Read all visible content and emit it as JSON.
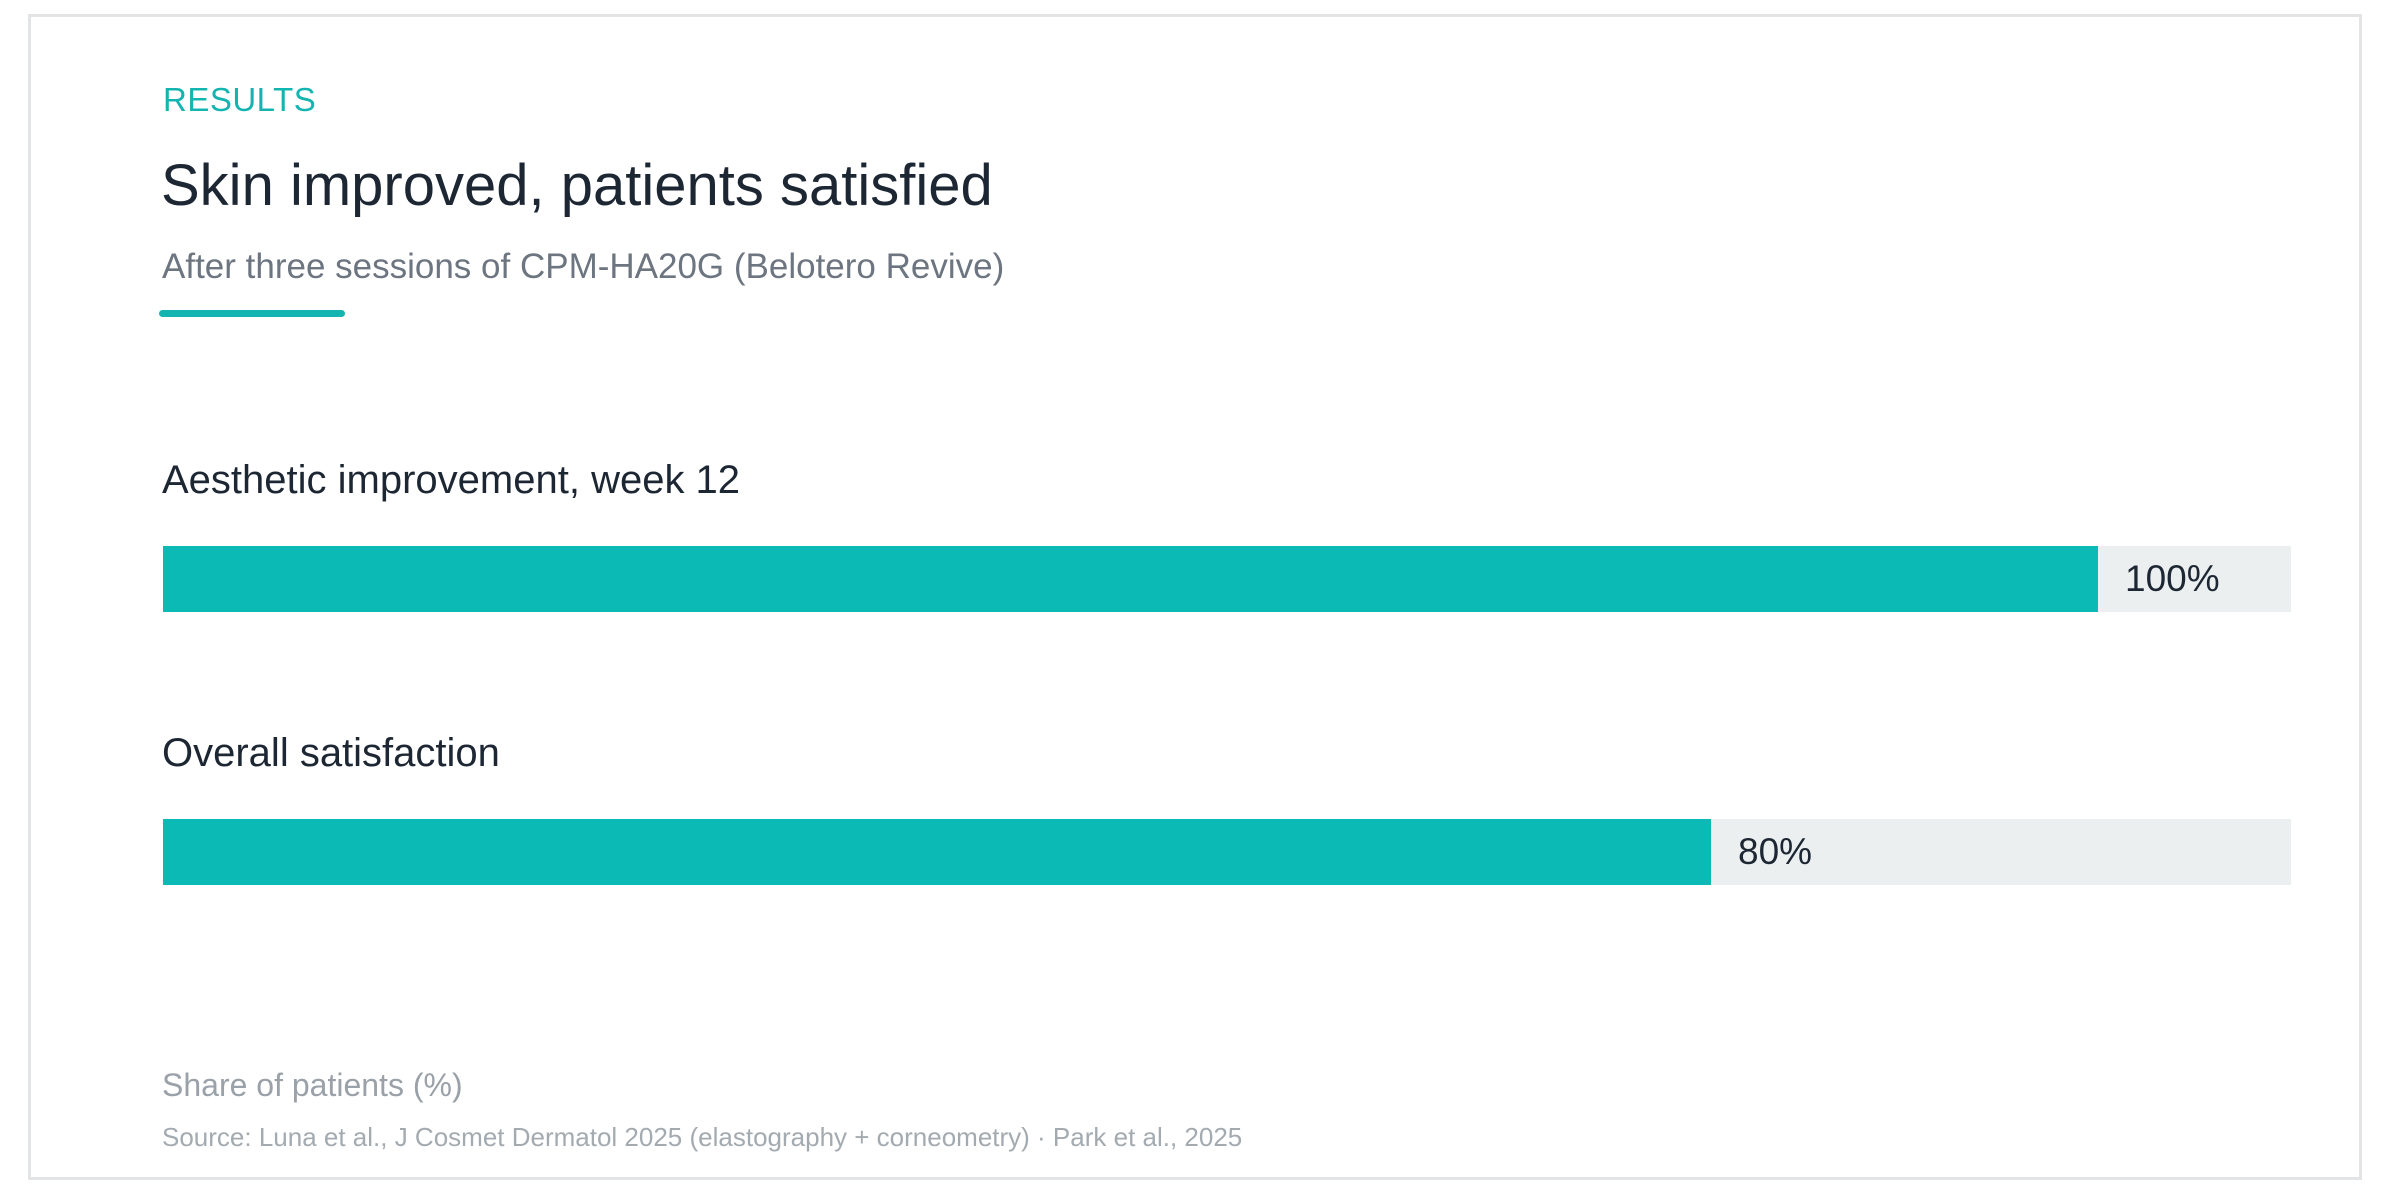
{
  "header": {
    "eyebrow": "RESULTS",
    "title": "Skin improved, patients satisfied",
    "subtitle": "After three sessions of CPM-HA20G (Belotero Revive)"
  },
  "footer": {
    "axis_caption": "Share of patients (%)",
    "source": "Source: Luna et al., J Cosmet Dermatol 2025 (elastography + corneometry) · Park et al., 2025"
  },
  "colors": {
    "accent": "#14b5b0",
    "bar": "#0bbab5",
    "track": "#ebeff0",
    "text": "#1d2733"
  },
  "chart_data": {
    "type": "bar",
    "orientation": "horizontal",
    "title": "Skin improved, patients satisfied",
    "subtitle": "After three sessions of CPM-HA20G (Belotero Revive)",
    "xlabel": "Share of patients (%)",
    "xlim": [
      0,
      110
    ],
    "grid": false,
    "categories": [
      "Aesthetic improvement, week 12",
      "Overall satisfaction"
    ],
    "values": [
      100,
      80
    ],
    "value_labels": [
      "100%",
      "80%"
    ]
  }
}
